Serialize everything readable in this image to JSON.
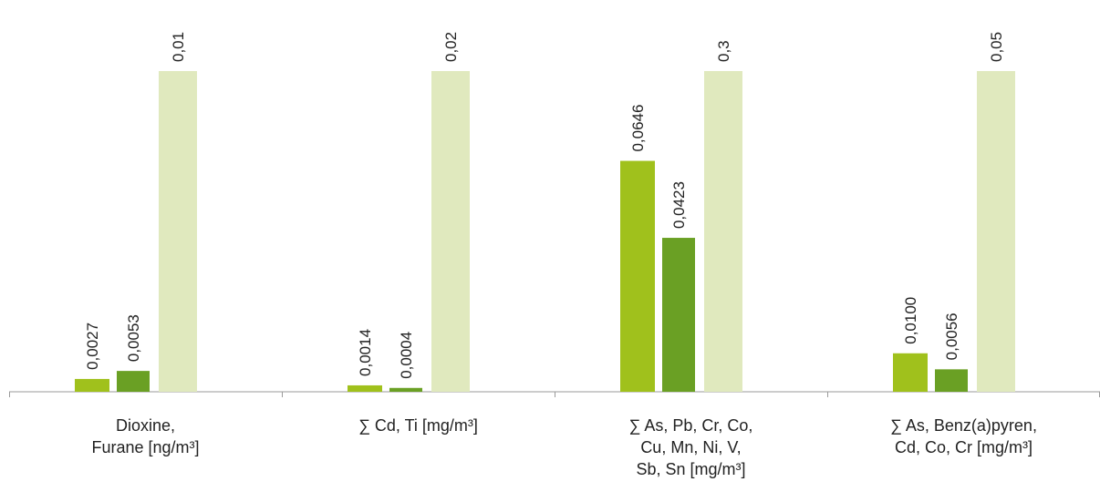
{
  "chart_data": {
    "type": "bar",
    "title": "",
    "xlabel": "",
    "ylabel": "",
    "grid": false,
    "legend": "none",
    "categories": [
      [
        "Dioxine,",
        "Furane [ng/m³]"
      ],
      [
        "∑ Cd, Ti [mg/m³]"
      ],
      [
        "∑ As, Pb, Cr, Co,",
        "Cu, Mn, Ni, V,",
        "Sb, Sn [mg/m³]"
      ],
      [
        "∑ As, Benz(a)pyren,",
        "Cd, Co, Cr [mg/m³]"
      ]
    ],
    "series": [
      {
        "color": "#a0c11c",
        "values": [
          0.0027,
          0.0014,
          0.0646,
          0.01
        ],
        "labels": [
          "0,0027",
          "0,0014",
          "0,0646",
          "0,0100"
        ],
        "fraction_of_limit": [
          0.04,
          0.02,
          0.72,
          0.12
        ]
      },
      {
        "color": "#6aa024",
        "values": [
          0.0053,
          0.0004,
          0.0423,
          0.0056
        ],
        "labels": [
          "0,0053",
          "0,0004",
          "0,0423",
          "0,0056"
        ],
        "fraction_of_limit": [
          0.065,
          0.012,
          0.48,
          0.07
        ]
      },
      {
        "color": "#e0e9be",
        "values": [
          0.01,
          0.02,
          0.3,
          0.05
        ],
        "labels": [
          "0,01",
          "0,02",
          "0,3",
          "0,05"
        ],
        "fraction_of_limit": [
          1,
          1,
          1,
          1
        ]
      }
    ]
  }
}
